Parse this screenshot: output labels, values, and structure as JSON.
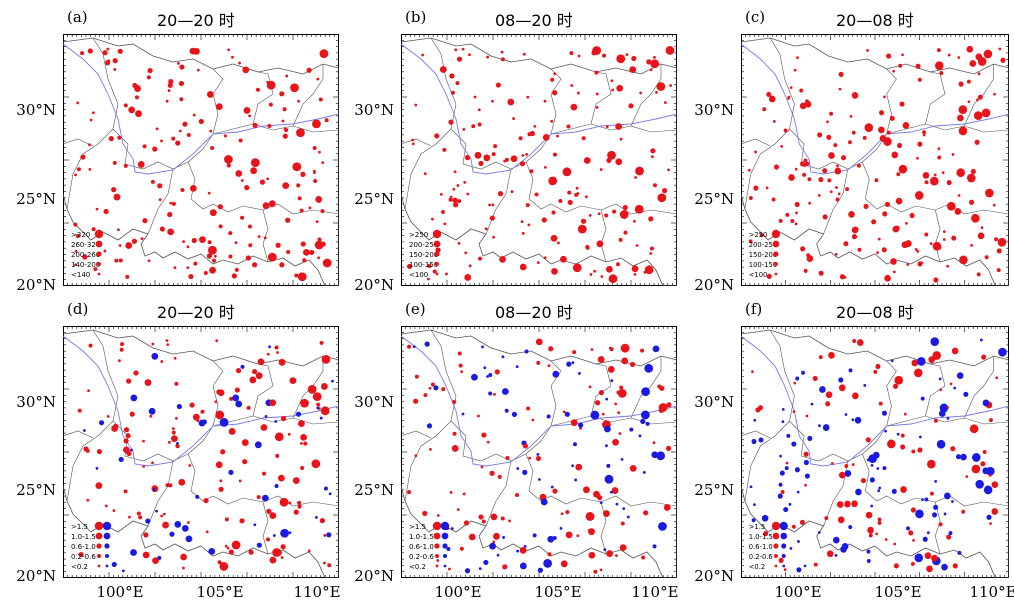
{
  "panels": [
    {
      "label": "(a)",
      "title": "20—20 时",
      "legend": [
        ">320",
        "260-320",
        "200-260",
        "140-200",
        "<140"
      ]
    },
    {
      "label": "(b)",
      "title": "08—20 时",
      "legend": [
        ">250",
        "200-250",
        "150-200",
        "100-150",
        "<100"
      ]
    },
    {
      "label": "(c)",
      "title": "20—08 时",
      "legend": [
        ">250",
        "200-250",
        "150-200",
        "100-150",
        "<100"
      ]
    },
    {
      "label": "(d)",
      "title": "20—20 时",
      "legend": [
        ">1.5",
        "1.0-1.5",
        "0.6-1.0",
        "0.2-0.6",
        "<0.2"
      ]
    },
    {
      "label": "(e)",
      "title": "08—20 时",
      "legend": [
        ">1.5",
        "1.0-1.5",
        "0.6-1.0",
        "0.2-0.6",
        "<0.2"
      ]
    },
    {
      "label": "(f)",
      "title": "20—08 时",
      "legend": [
        ">1.5",
        "1.0-1.5",
        "0.6-1.0",
        "0.2-0.6",
        "<0.2"
      ]
    }
  ],
  "axes": {
    "y_ticks": [
      "30°N",
      "25°N",
      "20°N"
    ],
    "x_ticks": [
      "100°E",
      "105°E",
      "110°E"
    ]
  },
  "colors": {
    "positive": "#e8141a",
    "negative": "#1a1ae0",
    "border": "#555555",
    "river": "#7a7ae8"
  }
}
